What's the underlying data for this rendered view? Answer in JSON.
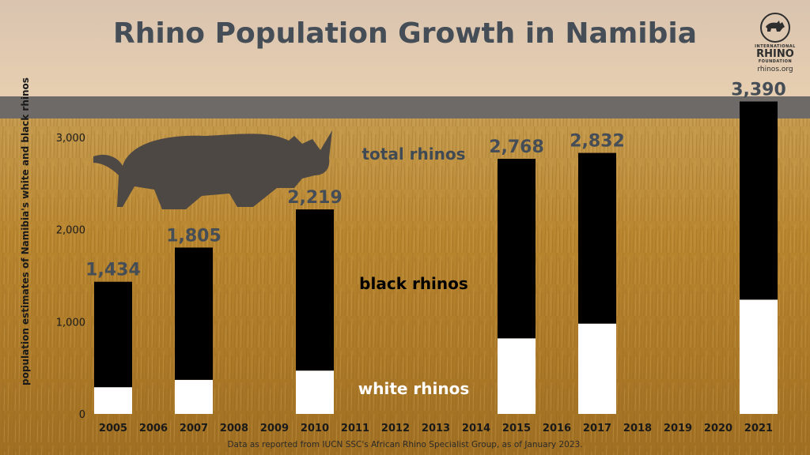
{
  "title": "Rhino Population Growth in Namibia",
  "logo": {
    "top": "INTERNATIONAL",
    "main": "RHINO",
    "bottom": "FOUNDATION",
    "site": "rhinos.org"
  },
  "source_note": "Data as reported from IUCN SSC's African Rhino Specialist Group, as of January 2023.",
  "chart_data": {
    "type": "bar",
    "stacked": true,
    "ylabel": "population estimates of Namibia's white and black rhinos",
    "ylim": [
      0,
      3000
    ],
    "yticks": [
      0,
      1000,
      2000,
      3000
    ],
    "ytick_labels": [
      "0",
      "1,000",
      "2,000",
      "3,000"
    ],
    "categories": [
      "2005",
      "2006",
      "2007",
      "2008",
      "2009",
      "2010",
      "2011",
      "2012",
      "2013",
      "2014",
      "2015",
      "2016",
      "2017",
      "2018",
      "2019",
      "2020",
      "2021"
    ],
    "series": [
      {
        "name": "white rhinos",
        "color": "#ffffff",
        "values": [
          290,
          null,
          370,
          null,
          null,
          470,
          null,
          null,
          null,
          null,
          820,
          null,
          980,
          null,
          null,
          null,
          1240
        ]
      },
      {
        "name": "black rhinos",
        "color": "#000000",
        "values": [
          1144,
          null,
          1435,
          null,
          null,
          1749,
          null,
          null,
          null,
          null,
          1948,
          null,
          1852,
          null,
          null,
          null,
          2150
        ]
      }
    ],
    "totals": [
      1434,
      null,
      1805,
      null,
      null,
      2219,
      null,
      null,
      null,
      null,
      2768,
      null,
      2832,
      null,
      null,
      null,
      3390
    ],
    "total_labels": [
      "1,434",
      null,
      "1,805",
      null,
      null,
      "2,219",
      null,
      null,
      null,
      null,
      "2,768",
      null,
      "2,832",
      null,
      null,
      null,
      "3,390"
    ],
    "annotations": [
      "total rhinos",
      "black rhinos",
      "white rhinos"
    ],
    "grid": false,
    "colors": {
      "title": "#454d57",
      "total_label": "#454d57",
      "axis_text": "#1a1a1a"
    }
  }
}
